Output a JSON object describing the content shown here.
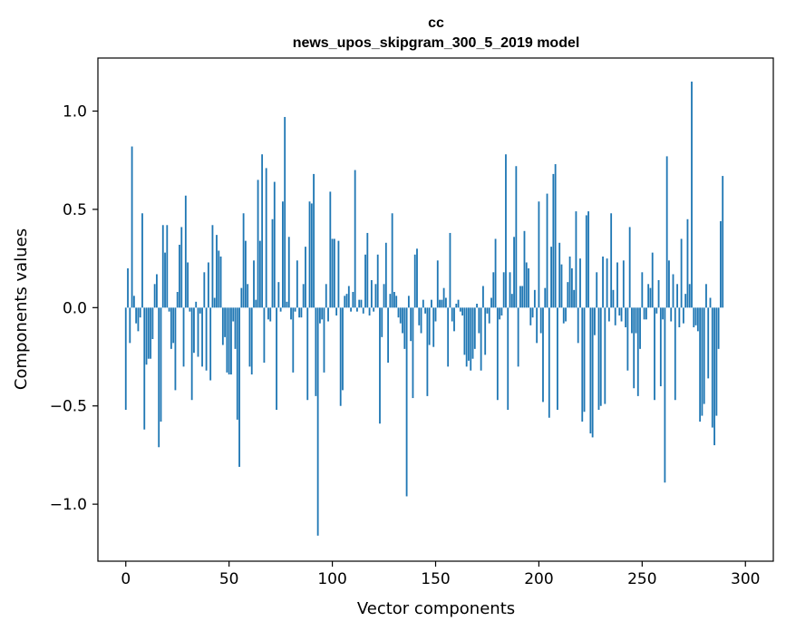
{
  "chart_data": {
    "type": "bar",
    "title": "cc",
    "subtitle": "news_upos_skipgram_300_5_2019 model",
    "xlabel": "Vector components",
    "ylabel": "Components values",
    "xlim": [
      -13.5,
      313.5
    ],
    "ylim": [
      -1.29,
      1.27
    ],
    "xticks": [
      0,
      50,
      100,
      150,
      200,
      250,
      300
    ],
    "xtick_labels": [
      "0",
      "50",
      "100",
      "150",
      "200",
      "250",
      "300"
    ],
    "yticks": [
      -1.0,
      -0.5,
      0.0,
      0.5,
      1.0
    ],
    "ytick_labels": [
      "−1.0",
      "−0.5",
      "0.0",
      "0.5",
      "1.0"
    ],
    "color": "#1f77b4",
    "values": [
      -0.52,
      0.2,
      -0.18,
      0.82,
      0.06,
      -0.08,
      -0.12,
      -0.05,
      0.48,
      -0.62,
      -0.29,
      -0.26,
      -0.26,
      -0.16,
      0.12,
      0.17,
      -0.71,
      -0.58,
      0.42,
      0.28,
      0.42,
      -0.02,
      -0.21,
      -0.18,
      -0.42,
      0.08,
      0.32,
      0.41,
      -0.3,
      0.57,
      0.23,
      -0.02,
      -0.47,
      -0.23,
      0.03,
      -0.25,
      -0.03,
      -0.3,
      0.18,
      -0.32,
      0.23,
      -0.37,
      0.42,
      0.05,
      0.37,
      0.29,
      0.26,
      -0.19,
      -0.15,
      -0.33,
      -0.34,
      -0.34,
      -0.07,
      -0.21,
      -0.57,
      -0.81,
      0.1,
      0.48,
      0.34,
      0.12,
      -0.3,
      -0.34,
      0.24,
      0.04,
      0.65,
      0.34,
      0.78,
      -0.28,
      0.71,
      -0.06,
      -0.07,
      0.45,
      0.64,
      -0.52,
      0.13,
      -0.02,
      0.54,
      0.97,
      0.03,
      0.36,
      -0.06,
      -0.33,
      -0.02,
      0.24,
      -0.05,
      -0.05,
      0.12,
      0.31,
      -0.47,
      0.54,
      0.53,
      0.68,
      -0.45,
      -1.16,
      -0.08,
      -0.06,
      -0.33,
      0.12,
      -0.07,
      0.59,
      0.35,
      0.35,
      -0.04,
      0.34,
      -0.5,
      -0.42,
      0.06,
      0.07,
      0.11,
      -0.02,
      0.08,
      0.7,
      -0.02,
      0.04,
      0.04,
      -0.03,
      0.27,
      0.38,
      -0.04,
      0.14,
      -0.02,
      0.12,
      0.27,
      -0.59,
      -0.15,
      0.12,
      0.33,
      -0.28,
      0.07,
      0.48,
      0.08,
      0.06,
      -0.05,
      -0.08,
      -0.13,
      -0.21,
      -0.96,
      0.06,
      -0.17,
      -0.46,
      0.27,
      0.3,
      -0.09,
      -0.13,
      0.04,
      -0.03,
      -0.45,
      -0.19,
      0.04,
      -0.2,
      -0.07,
      0.24,
      0.04,
      0.04,
      0.1,
      0.05,
      -0.3,
      0.38,
      -0.07,
      -0.12,
      0.02,
      0.04,
      -0.02,
      -0.04,
      -0.24,
      -0.3,
      -0.27,
      -0.32,
      -0.26,
      -0.21,
      0.02,
      -0.13,
      -0.32,
      0.11,
      -0.24,
      -0.03,
      -0.08,
      0.05,
      0.18,
      0.35,
      -0.47,
      -0.06,
      -0.04,
      0.18,
      0.78,
      -0.52,
      0.18,
      0.07,
      0.36,
      0.72,
      -0.3,
      0.11,
      0.11,
      0.39,
      0.23,
      0.2,
      -0.09,
      -0.05,
      0.09,
      -0.18,
      0.54,
      -0.13,
      -0.48,
      0.1,
      0.58,
      -0.56,
      0.31,
      0.68,
      0.73,
      -0.52,
      0.33,
      0.22,
      -0.08,
      -0.07,
      0.13,
      0.26,
      0.2,
      0.09,
      0.49,
      -0.18,
      0.25,
      -0.58,
      -0.53,
      0.47,
      0.49,
      -0.64,
      -0.66,
      -0.14,
      0.18,
      -0.52,
      -0.5,
      0.26,
      -0.49,
      0.25,
      -0.07,
      0.48,
      0.09,
      -0.09,
      0.23,
      -0.04,
      -0.07,
      0.24,
      -0.1,
      -0.32,
      0.41,
      -0.13,
      -0.41,
      -0.13,
      -0.45,
      -0.21,
      0.18,
      -0.06,
      -0.06,
      0.12,
      0.1,
      0.28,
      -0.47,
      -0.03,
      0.14,
      -0.4,
      -0.06,
      -0.89,
      0.77,
      0.24,
      -0.07,
      0.17,
      -0.47,
      0.12,
      -0.1,
      0.35,
      -0.08,
      0.07,
      0.45,
      0.12,
      1.15,
      -0.1,
      -0.09,
      -0.12,
      -0.58,
      -0.55,
      -0.49,
      0.12,
      -0.36,
      0.05,
      -0.61,
      -0.7,
      -0.55,
      -0.21,
      0.44,
      0.67
    ]
  }
}
